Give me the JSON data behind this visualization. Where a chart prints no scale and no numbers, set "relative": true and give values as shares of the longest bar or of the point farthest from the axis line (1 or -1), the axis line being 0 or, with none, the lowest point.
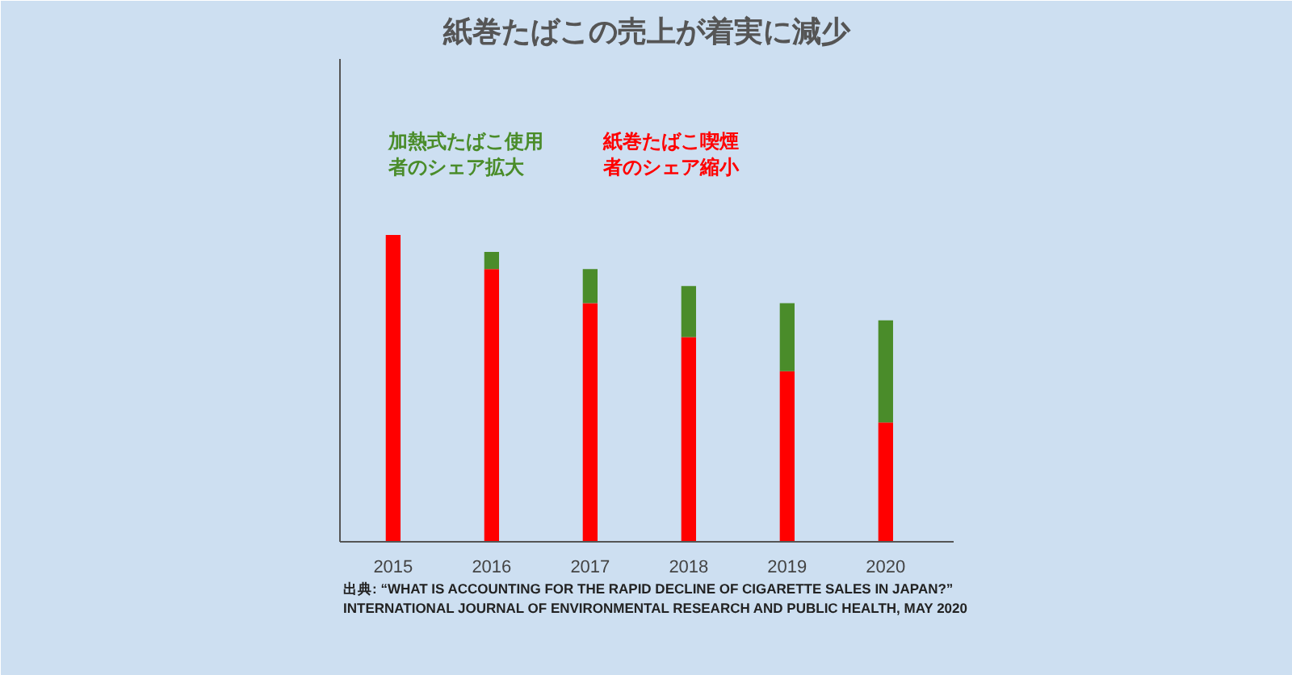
{
  "chart_data": {
    "type": "bar",
    "title": "紙巻たばこの売上が着実に減少",
    "categories": [
      "2015",
      "2016",
      "2017",
      "2018",
      "2019",
      "2020"
    ],
    "relative": true,
    "stacked": true,
    "tick_labels": "x",
    "grid": false,
    "series": [
      {
        "name": "紙巻たばこ喫煙者のシェア縮小",
        "color": "#ff0000",
        "values": [
          1.0,
          0.889,
          0.778,
          0.667,
          0.556,
          0.389
        ]
      },
      {
        "name": "加熱式たばこ使用者のシェア拡大",
        "color": "#4a8c2a",
        "values": [
          0,
          0.056,
          0.111,
          0.167,
          0.222,
          0.333
        ]
      }
    ],
    "annotations": [
      "出典: “WHAT IS ACCOUNTING FOR THE RAPID DECLINE OF CIGARETTE SALES IN JAPAN?”",
      "INTERNATIONAL JOURNAL OF ENVIRONMENTAL RESEARCH AND PUBLIC HEALTH, MAY 2020"
    ]
  }
}
